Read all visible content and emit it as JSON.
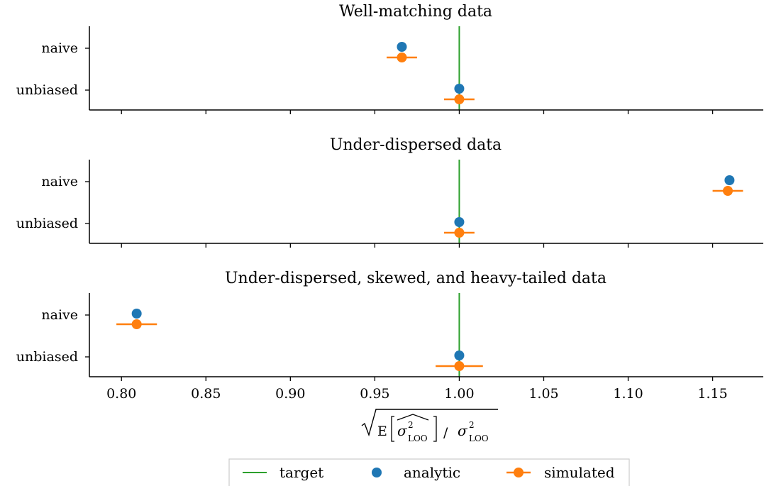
{
  "chart_data": [
    {
      "type": "scatter",
      "title": "Well-matching data",
      "categories": [
        "naive",
        "unbiased"
      ],
      "series": [
        {
          "name": "analytic",
          "values": [
            0.966,
            1.0
          ]
        },
        {
          "name": "simulated",
          "values": [
            0.966,
            1.0
          ],
          "error": [
            0.009,
            0.009
          ]
        }
      ],
      "target": 1.0
    },
    {
      "type": "scatter",
      "title": "Under-dispersed data",
      "categories": [
        "naive",
        "unbiased"
      ],
      "series": [
        {
          "name": "analytic",
          "values": [
            1.16,
            1.0
          ]
        },
        {
          "name": "simulated",
          "values": [
            1.159,
            1.0
          ],
          "error": [
            0.009,
            0.009
          ]
        }
      ],
      "target": 1.0
    },
    {
      "type": "scatter",
      "title": "Under-dispersed, skewed, and heavy-tailed data",
      "categories": [
        "naive",
        "unbiased"
      ],
      "series": [
        {
          "name": "analytic",
          "values": [
            0.809,
            1.0
          ]
        },
        {
          "name": "simulated",
          "values": [
            0.809,
            1.0
          ],
          "error": [
            0.012,
            0.014
          ]
        }
      ],
      "target": 1.0
    }
  ],
  "x_axis": {
    "ticks": [
      0.8,
      0.85,
      0.9,
      0.95,
      1.0,
      1.05,
      1.1,
      1.15
    ],
    "tick_labels": [
      "0.80",
      "0.85",
      "0.90",
      "0.95",
      "1.00",
      "1.05",
      "1.10",
      "1.15"
    ],
    "xlim": [
      0.781,
      1.18
    ],
    "label_parts": {
      "e": "E",
      "sigma": "σ",
      "sup": "2",
      "sub": "LOO",
      "slash": "/"
    }
  },
  "legend": {
    "placement": "bottom-center",
    "entries": [
      "target",
      "analytic",
      "simulated"
    ]
  },
  "colors": {
    "analytic": "#1f77b4",
    "simulated": "#ff7f0e",
    "target": "#2ca02c",
    "axis": "#000000"
  }
}
